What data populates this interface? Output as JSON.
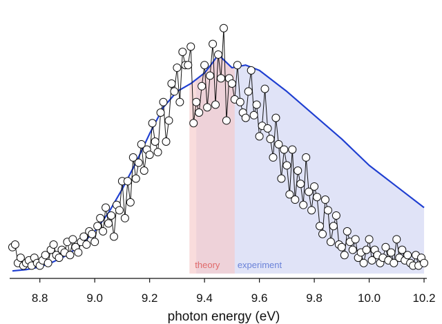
{
  "chart_data": {
    "type": "scatter",
    "xlabel": "photon energy (eV)",
    "ylabel": "",
    "title": "",
    "xlim": [
      8.69,
      10.21
    ],
    "ylim": [
      0,
      1.0
    ],
    "xticks": [
      "8.8",
      "9.0",
      "9.2",
      "9.4",
      "9.6",
      "9.8",
      "10.0",
      "10.2"
    ],
    "tick_values": [
      8.8,
      9.0,
      9.2,
      9.4,
      9.6,
      9.8,
      10.0,
      10.2
    ],
    "grid": false,
    "colors": {
      "curve": "#1f3fd1",
      "points_fill": "#ffffff",
      "points_stroke": "#111111",
      "connector": "#111111",
      "theory_band": "#f6c9c9",
      "experiment_band": "#d5daf4",
      "theory_label": "#e06a6a",
      "experiment_label": "#6a82d8"
    },
    "bands": [
      {
        "name": "theory",
        "x_start": 9.345,
        "x_end": 9.51
      },
      {
        "name": "experiment",
        "x_start": 9.37,
        "x_end": 10.2
      }
    ],
    "series": [
      {
        "kind": "line",
        "x": [
          8.7,
          8.75,
          8.8,
          8.85,
          8.9,
          8.95,
          9.0,
          9.05,
          9.1,
          9.15,
          9.2,
          9.25,
          9.3,
          9.35,
          9.4,
          9.43,
          9.45,
          9.5,
          9.55,
          9.6,
          9.65,
          9.7,
          9.8,
          9.9,
          10.0,
          10.1,
          10.2
        ],
        "values": [
          0.01,
          0.015,
          0.025,
          0.045,
          0.07,
          0.11,
          0.16,
          0.23,
          0.32,
          0.42,
          0.53,
          0.63,
          0.69,
          0.72,
          0.76,
          0.8,
          0.83,
          0.78,
          0.79,
          0.77,
          0.73,
          0.69,
          0.6,
          0.51,
          0.41,
          0.33,
          0.25
        ]
      },
      {
        "kind": "scatter",
        "x": [
          8.7,
          8.71,
          8.72,
          8.73,
          8.74,
          8.75,
          8.76,
          8.77,
          8.78,
          8.79,
          8.8,
          8.81,
          8.82,
          8.83,
          8.84,
          8.85,
          8.86,
          8.87,
          8.88,
          8.89,
          8.9,
          8.91,
          8.92,
          8.93,
          8.94,
          8.95,
          8.96,
          8.97,
          8.98,
          8.99,
          9.0,
          9.01,
          9.02,
          9.03,
          9.04,
          9.05,
          9.06,
          9.07,
          9.08,
          9.09,
          9.1,
          9.11,
          9.12,
          9.13,
          9.14,
          9.15,
          9.16,
          9.17,
          9.18,
          9.19,
          9.2,
          9.21,
          9.22,
          9.23,
          9.24,
          9.25,
          9.26,
          9.27,
          9.28,
          9.29,
          9.3,
          9.31,
          9.32,
          9.33,
          9.34,
          9.35,
          9.36,
          9.37,
          9.38,
          9.39,
          9.4,
          9.41,
          9.42,
          9.43,
          9.44,
          9.45,
          9.46,
          9.47,
          9.48,
          9.49,
          9.5,
          9.51,
          9.52,
          9.53,
          9.54,
          9.55,
          9.56,
          9.57,
          9.58,
          9.59,
          9.6,
          9.61,
          9.62,
          9.63,
          9.64,
          9.65,
          9.66,
          9.67,
          9.68,
          9.69,
          9.7,
          9.71,
          9.72,
          9.73,
          9.74,
          9.75,
          9.76,
          9.77,
          9.78,
          9.79,
          9.8,
          9.81,
          9.82,
          9.83,
          9.84,
          9.85,
          9.86,
          9.87,
          9.88,
          9.89,
          9.9,
          9.91,
          9.92,
          9.93,
          9.94,
          9.95,
          9.96,
          9.97,
          9.98,
          9.99,
          10.0,
          10.01,
          10.02,
          10.03,
          10.04,
          10.05,
          10.06,
          10.07,
          10.08,
          10.09,
          10.1,
          10.11,
          10.12,
          10.13,
          10.14,
          10.15,
          10.16,
          10.17,
          10.18,
          10.19,
          10.2
        ],
        "values": [
          0.1,
          0.11,
          0.04,
          0.06,
          0.03,
          0.04,
          0.05,
          0.03,
          0.06,
          0.04,
          0.03,
          0.05,
          0.07,
          0.04,
          0.09,
          0.11,
          0.07,
          0.06,
          0.09,
          0.08,
          0.12,
          0.07,
          0.13,
          0.1,
          0.08,
          0.12,
          0.14,
          0.11,
          0.16,
          0.15,
          0.12,
          0.18,
          0.21,
          0.16,
          0.25,
          0.19,
          0.22,
          0.14,
          0.26,
          0.24,
          0.35,
          0.21,
          0.35,
          0.27,
          0.44,
          0.36,
          0.42,
          0.49,
          0.39,
          0.47,
          0.45,
          0.57,
          0.5,
          0.46,
          0.61,
          0.65,
          0.5,
          0.58,
          0.72,
          0.69,
          0.78,
          0.65,
          0.84,
          0.79,
          0.79,
          0.86,
          0.57,
          0.65,
          0.61,
          0.71,
          0.79,
          0.63,
          0.75,
          0.87,
          0.64,
          0.83,
          0.74,
          0.93,
          0.58,
          0.74,
          0.72,
          0.66,
          0.79,
          0.65,
          0.61,
          0.59,
          0.69,
          0.77,
          0.6,
          0.64,
          0.52,
          0.56,
          0.7,
          0.55,
          0.51,
          0.44,
          0.59,
          0.49,
          0.36,
          0.47,
          0.41,
          0.3,
          0.47,
          0.28,
          0.39,
          0.34,
          0.26,
          0.44,
          0.31,
          0.24,
          0.33,
          0.29,
          0.18,
          0.15,
          0.28,
          0.24,
          0.12,
          0.18,
          0.22,
          0.11,
          0.1,
          0.07,
          0.16,
          0.12,
          0.09,
          0.13,
          0.06,
          0.08,
          0.04,
          0.09,
          0.13,
          0.05,
          0.09,
          0.07,
          0.04,
          0.06,
          0.1,
          0.05,
          0.08,
          0.04,
          0.13,
          0.06,
          0.09,
          0.05,
          0.07,
          0.04,
          0.03,
          0.07,
          0.03,
          0.06,
          0.04
        ]
      }
    ]
  }
}
